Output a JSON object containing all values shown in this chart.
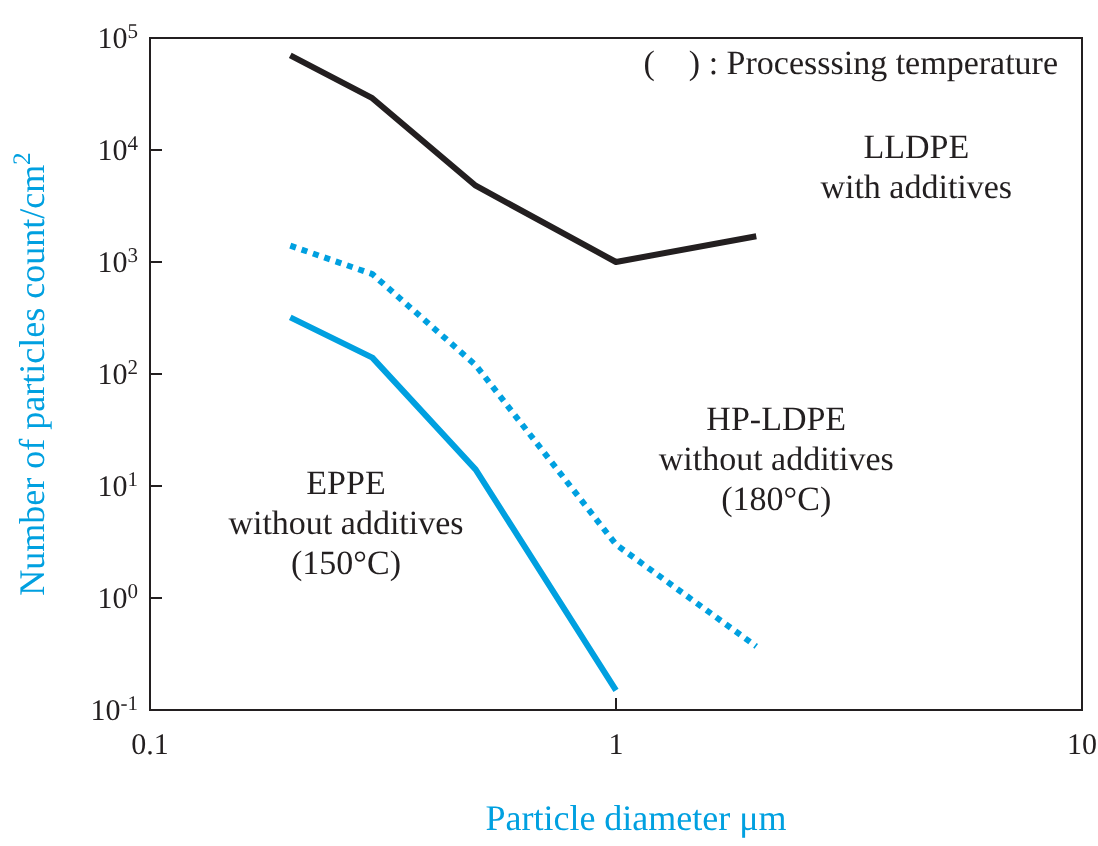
{
  "chart_data": {
    "type": "line",
    "log": "xy",
    "xlabel": "Particle diameter  μm",
    "ylabel": "Number of particles  count/cm$^{2}$",
    "xlim": [
      0.1,
      10
    ],
    "ylim": [
      0.1,
      100000
    ],
    "xticks": [
      0.1,
      1,
      10
    ],
    "yticks": [
      {
        "value": 0.1,
        "label": "10$^{-1}$"
      },
      {
        "value": 1,
        "label": "10$^{0}$"
      },
      {
        "value": 10,
        "label": "10$^{1}$"
      },
      {
        "value": 100,
        "label": "10$^{2}$"
      },
      {
        "value": 1000,
        "label": "10$^{3}$"
      },
      {
        "value": 10000,
        "label": "10$^{4}$"
      },
      {
        "value": 100000,
        "label": "10$^{5}$"
      }
    ],
    "grid": false,
    "marker": "none",
    "annotations": [
      "(　) : Processsing temperature"
    ],
    "series": [
      {
        "name": "LLDPE\nwith additives",
        "color": "#231f20",
        "line_style": "solid",
        "x": [
          0.2,
          0.3,
          0.5,
          1,
          2
        ],
        "values": [
          70000,
          29000,
          4800,
          1000,
          1700
        ]
      },
      {
        "name": "HP-LDPE\nwithout additives\n(180°C)",
        "color": "#00a0e0",
        "line_style": "dotted",
        "x": [
          0.2,
          0.3,
          0.5,
          1,
          2
        ],
        "values": [
          1400,
          780,
          120,
          3,
          0.37
        ]
      },
      {
        "name": "EPPE\nwithout additives\n(150°C)",
        "color": "#00a0e0",
        "line_style": "solid",
        "x": [
          0.2,
          0.3,
          0.5,
          1
        ],
        "values": [
          320,
          140,
          14,
          0.15
        ]
      }
    ]
  }
}
